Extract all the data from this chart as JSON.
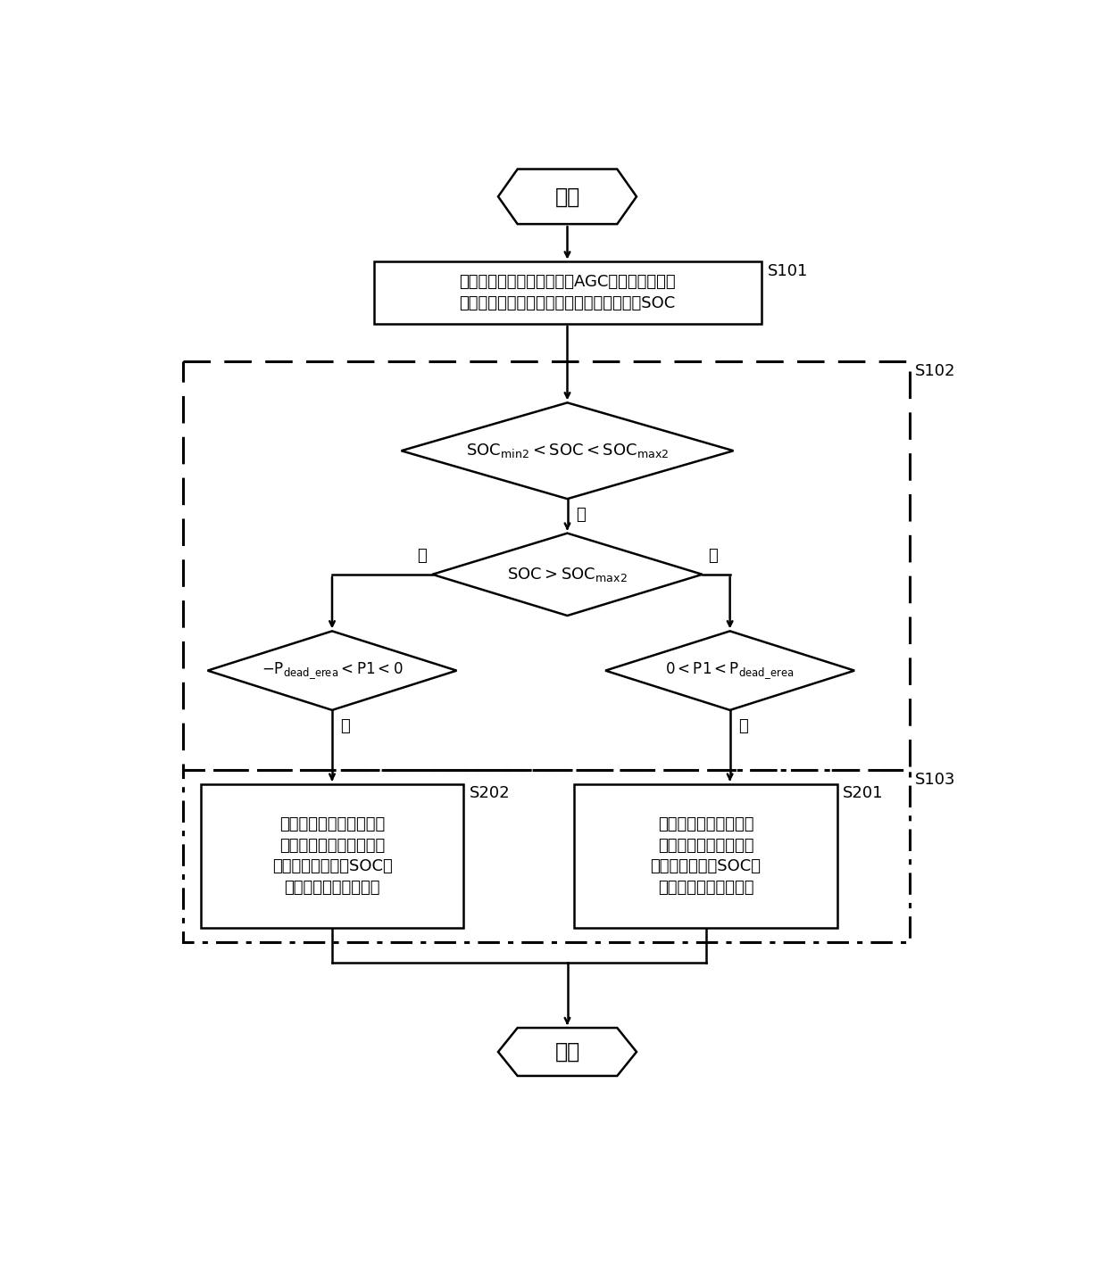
{
  "bg_color": "#ffffff",
  "line_color": "#000000",
  "start_text": "开始",
  "step1_line1": "在火储系统的储能系统处于AGC调频模式下时，",
  "step1_line2": "获得火储系统中储能系统的调频功率指令和SOC",
  "step1_label": "S101",
  "step2_label": "S102",
  "step3_label": "S103",
  "no_label": "否",
  "yes_label": "是",
  "box_s201_line1": "控制储能系统以调频功",
  "box_s201_line2": "率指令和死区功率的和",
  "box_s201_line3": "値进行放电直至SOC变",
  "box_s201_line4": "换为理想范围的上限値",
  "box_s201_label": "S201",
  "box_s202_line1": "控制储能系统以调频功率",
  "box_s202_line2": "指令减去死区功率指令的",
  "box_s202_line3": "差値进行充电直至SOC变",
  "box_s202_line4": "换为理想范围的下限値",
  "box_s202_label": "S202",
  "end_text": "结束"
}
